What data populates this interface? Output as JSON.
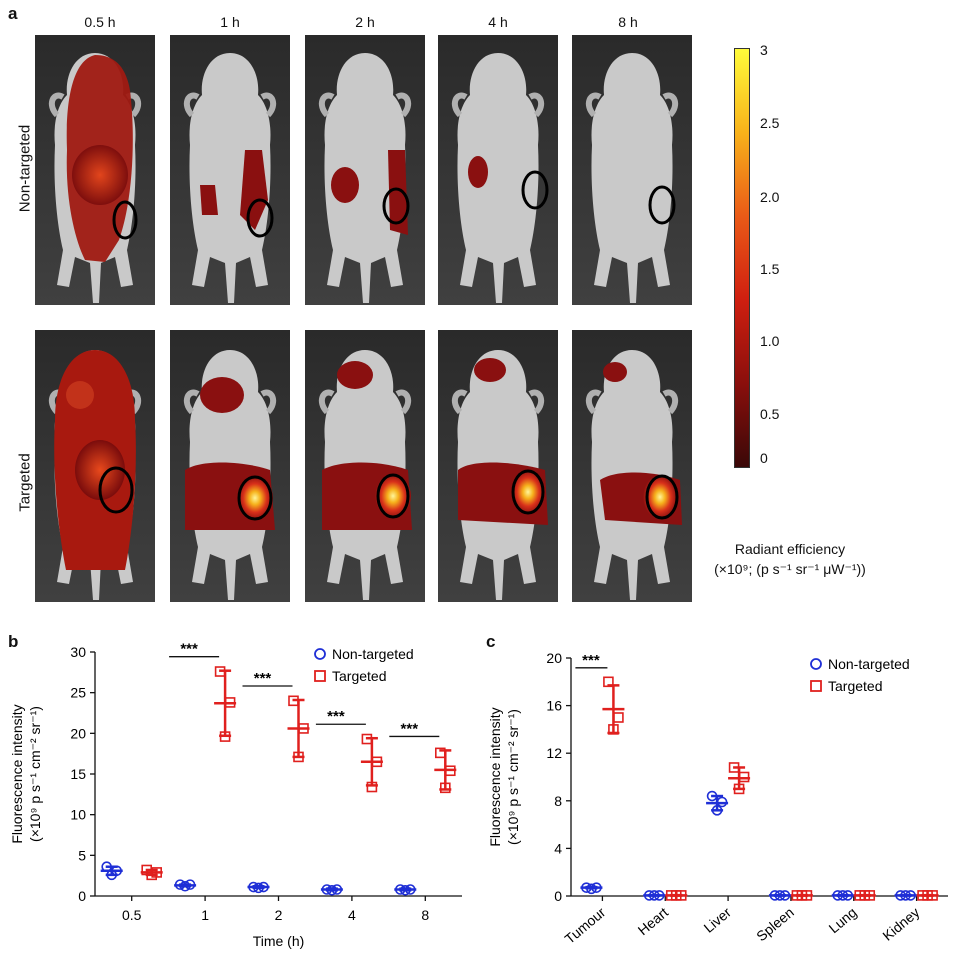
{
  "figure": {
    "panel_a": {
      "letter": "a",
      "time_labels": [
        "0.5 h",
        "1 h",
        "2 h",
        "4 h",
        "8 h"
      ],
      "row_labels": [
        "Non-targeted",
        "Targeted"
      ],
      "colorbar": {
        "ticks": [
          "3",
          "2.5",
          "2.0",
          "1.5",
          "1.0",
          "0.5",
          "0"
        ],
        "caption_line1": "Radiant efficiency",
        "caption_line2": "(×10⁹; (p s⁻¹ sr⁻¹ μW⁻¹))"
      }
    },
    "colors": {
      "non_targeted": "#1f2fd6",
      "targeted": "#e0201e",
      "axis": "#111111"
    }
  },
  "chart_data": [
    {
      "panel": "b",
      "type": "scatter",
      "ylabel_line1": "Fluorescence intensity",
      "ylabel_line2": "(×10⁹ p s⁻¹ cm⁻² sr⁻¹)",
      "xlabel": "Time (h)",
      "categories": [
        "0.5",
        "1",
        "2",
        "4",
        "8"
      ],
      "ylim": [
        0,
        30
      ],
      "yticks": [
        "0",
        "5",
        "10",
        "15",
        "20",
        "25",
        "30"
      ],
      "significance": [
        "***",
        "***",
        "***",
        "***"
      ],
      "significance_at": [
        "1",
        "2",
        "4",
        "8"
      ],
      "series": [
        {
          "name": "Non-targeted",
          "marker": "circle",
          "points": [
            [
              3.6,
              2.6,
              3.1
            ],
            [
              1.4,
              1.2,
              1.4
            ],
            [
              1.1,
              1.0,
              1.1
            ],
            [
              0.8,
              0.7,
              0.8
            ],
            [
              0.8,
              0.7,
              0.8
            ]
          ],
          "mean": [
            3.1,
            1.3,
            1.1,
            0.8,
            0.8
          ],
          "sd": [
            0.5,
            0.1,
            0.1,
            0.1,
            0.1
          ]
        },
        {
          "name": "Targeted",
          "marker": "square",
          "points": [
            [
              3.2,
              2.6,
              2.9
            ],
            [
              27.6,
              19.6,
              23.8
            ],
            [
              24.0,
              17.1,
              20.6
            ],
            [
              19.3,
              13.4,
              16.5
            ],
            [
              17.6,
              13.3,
              15.4
            ]
          ],
          "mean": [
            2.9,
            23.7,
            20.6,
            16.5,
            15.5
          ],
          "sd": [
            0.3,
            4.0,
            3.5,
            2.9,
            2.4
          ]
        }
      ]
    },
    {
      "panel": "c",
      "type": "scatter",
      "ylabel_line1": "Fluorescence intensity",
      "ylabel_line2": "(×10⁹ p s⁻¹ cm⁻² sr⁻¹)",
      "xlabel": "",
      "categories": [
        "Tumour",
        "Heart",
        "Liver",
        "Spleen",
        "Lung",
        "Kidney"
      ],
      "ylim": [
        0,
        20
      ],
      "yticks": [
        "0",
        "4",
        "8",
        "12",
        "16",
        "20"
      ],
      "significance": [
        "***"
      ],
      "significance_at": [
        "Tumour"
      ],
      "series": [
        {
          "name": "Non-targeted",
          "marker": "circle",
          "points": [
            [
              0.7,
              0.6,
              0.7
            ],
            [
              0.05,
              0.05,
              0.05
            ],
            [
              8.4,
              7.2,
              7.9
            ],
            [
              0.05,
              0.05,
              0.05
            ],
            [
              0.05,
              0.05,
              0.05
            ],
            [
              0.05,
              0.05,
              0.05
            ]
          ],
          "mean": [
            0.7,
            0.05,
            7.8,
            0.05,
            0.05,
            0.05
          ],
          "sd": [
            0.05,
            0.02,
            0.6,
            0.02,
            0.02,
            0.02
          ]
        },
        {
          "name": "Targeted",
          "marker": "square",
          "points": [
            [
              18.0,
              14.0,
              15.0
            ],
            [
              0.05,
              0.05,
              0.05
            ],
            [
              10.8,
              9.0,
              10.0
            ],
            [
              0.05,
              0.05,
              0.05
            ],
            [
              0.05,
              0.05,
              0.05
            ],
            [
              0.05,
              0.05,
              0.05
            ]
          ],
          "mean": [
            15.7,
            0.05,
            9.9,
            0.05,
            0.05,
            0.05
          ],
          "sd": [
            2.0,
            0.02,
            0.9,
            0.02,
            0.02,
            0.02
          ]
        }
      ]
    }
  ]
}
